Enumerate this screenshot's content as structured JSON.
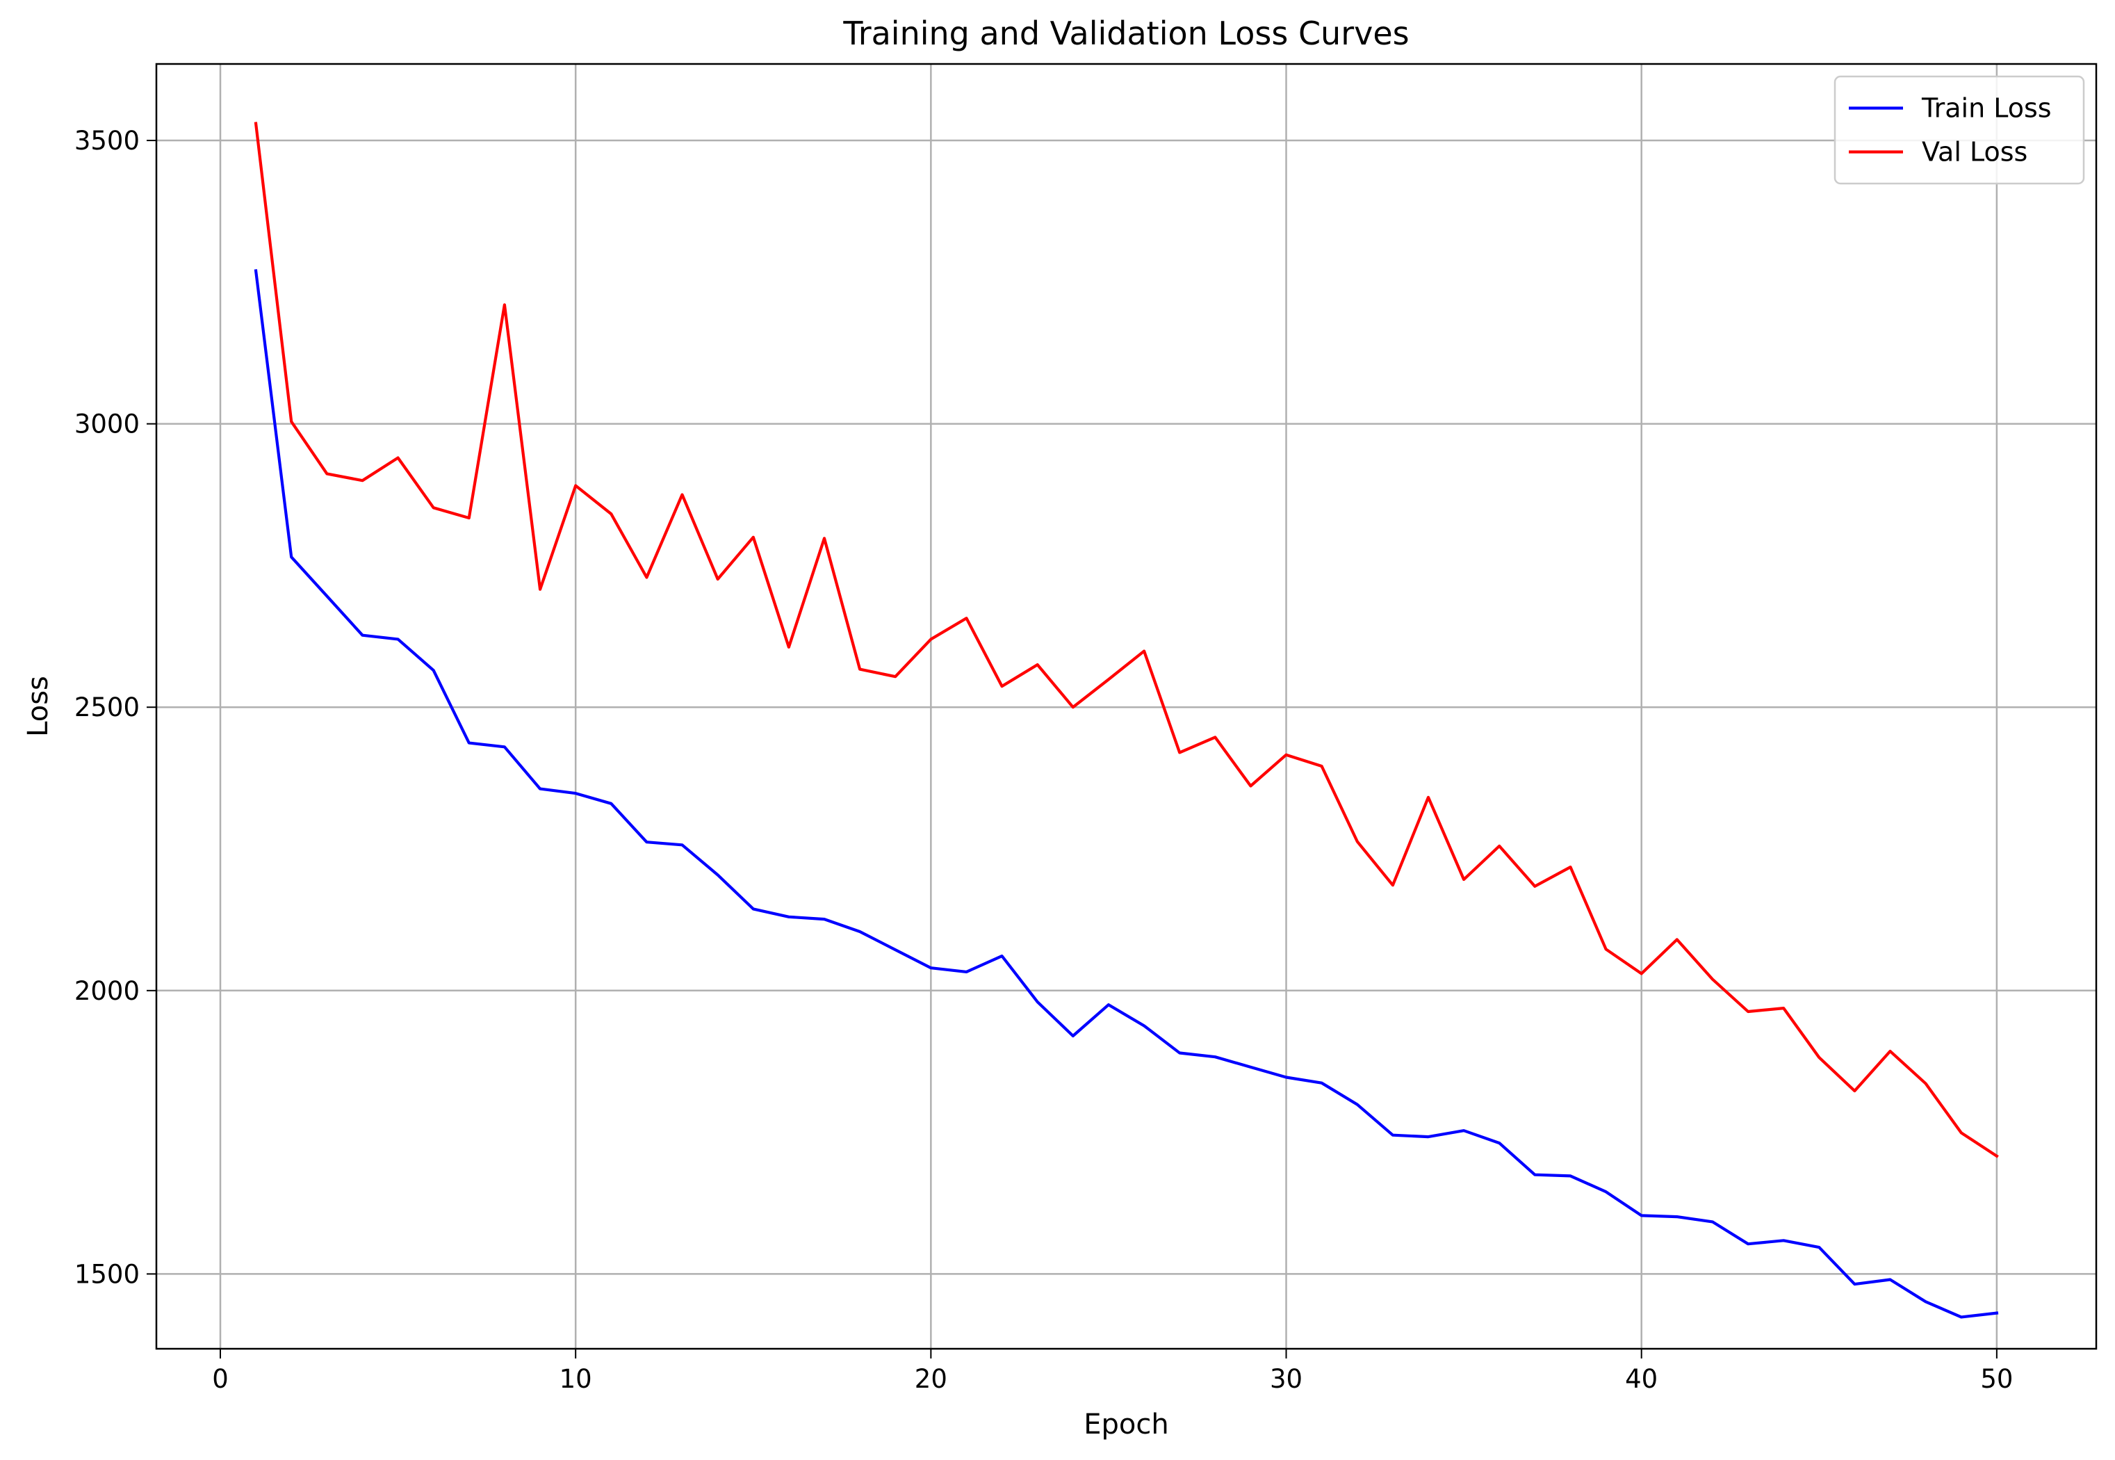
{
  "chart_data": {
    "type": "line",
    "title": "Training and Validation Loss Curves",
    "xlabel": "Epoch",
    "ylabel": "Loss",
    "xlim": [
      -1.8,
      52.8
    ],
    "ylim": [
      1368,
      3635
    ],
    "xticks": [
      0,
      10,
      20,
      30,
      40,
      50
    ],
    "yticks": [
      1500,
      2000,
      2500,
      3000,
      3500
    ],
    "grid": true,
    "legend_position": "top-right",
    "x": [
      1,
      2,
      3,
      4,
      5,
      6,
      7,
      8,
      9,
      10,
      11,
      12,
      13,
      14,
      15,
      16,
      17,
      18,
      19,
      20,
      21,
      22,
      23,
      24,
      25,
      26,
      27,
      28,
      29,
      30,
      31,
      32,
      33,
      34,
      35,
      36,
      37,
      38,
      39,
      40,
      41,
      42,
      43,
      44,
      45,
      46,
      47,
      48,
      49,
      50
    ],
    "series": [
      {
        "name": "Train Loss",
        "color": "#0000ff",
        "values": [
          3270,
          2765,
          2696,
          2627,
          2620,
          2565,
          2437,
          2430,
          2356,
          2348,
          2330,
          2262,
          2257,
          2204,
          2144,
          2130,
          2126,
          2104,
          2072,
          2040,
          2033,
          2061,
          1980,
          1920,
          1975,
          1938,
          1890,
          1883,
          1865,
          1847,
          1837,
          1799,
          1745,
          1742,
          1753,
          1731,
          1675,
          1673,
          1645,
          1603,
          1601,
          1592,
          1553,
          1559,
          1547,
          1482,
          1490,
          1451,
          1424,
          1431
        ]
      },
      {
        "name": "Val Loss",
        "color": "#ff0000",
        "values": [
          3530,
          3004,
          2912,
          2900,
          2940,
          2852,
          2834,
          3210,
          2708,
          2891,
          2841,
          2729,
          2875,
          2726,
          2800,
          2606,
          2798,
          2567,
          2554,
          2620,
          2657,
          2537,
          2575,
          2500,
          2549,
          2599,
          2420,
          2447,
          2361,
          2416,
          2396,
          2263,
          2186,
          2341,
          2196,
          2255,
          2184,
          2218,
          2073,
          2030,
          2090,
          2020,
          1963,
          1969,
          1882,
          1823,
          1893,
          1836,
          1749,
          1708
        ]
      }
    ]
  }
}
